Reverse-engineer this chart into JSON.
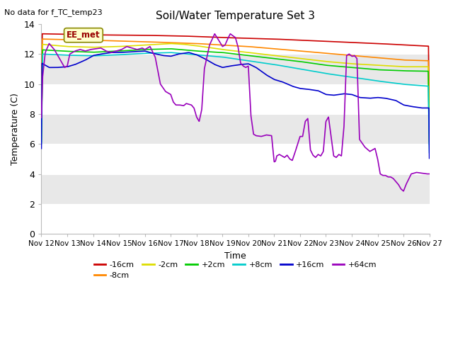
{
  "title": "Soil/Water Temperature Set 3",
  "subtitle": "No data for f_TC_temp23",
  "xlabel": "Time",
  "ylabel": "Temperature (C)",
  "ylim": [
    0,
    14
  ],
  "yticks": [
    0,
    2,
    4,
    6,
    8,
    10,
    12,
    14
  ],
  "annotation": "EE_met",
  "figsize": [
    6.4,
    4.8
  ],
  "dpi": 100,
  "series_colors": {
    "-16cm": "#cc0000",
    "-8cm": "#ff8800",
    "-2cm": "#dddd00",
    "+2cm": "#00cc00",
    "+8cm": "#00cccc",
    "+16cm": "#0000cc",
    "+64cm": "#9900bb"
  },
  "xtick_labels": [
    "Nov 12",
    "Nov 13",
    "Nov 14",
    "Nov 15",
    "Nov 16",
    "Nov 17",
    "Nov 18",
    "Nov 19",
    "Nov 20",
    "Nov 21",
    "Nov 22",
    "Nov 23",
    "Nov 24",
    "Nov 25",
    "Nov 26",
    "Nov 27"
  ],
  "xtick_positions": [
    12,
    13,
    14,
    15,
    16,
    17,
    18,
    19,
    20,
    21,
    22,
    23,
    24,
    25,
    26,
    27
  ],
  "band_colors": [
    "#ffffff",
    "#e8e8e8"
  ],
  "bg_color": "#ffffff"
}
